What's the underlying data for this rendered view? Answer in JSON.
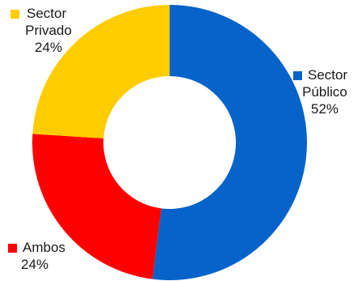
{
  "chart_data": {
    "type": "pie",
    "variant": "donut",
    "slices": [
      {
        "name": "Sector Público",
        "lines": [
          "Sector",
          "Público"
        ],
        "value": 52,
        "label": "52%",
        "color": "#0563C9"
      },
      {
        "name": "Ambos",
        "lines": [
          "Ambos"
        ],
        "value": 24,
        "label": "24%",
        "color": "#FF0000"
      },
      {
        "name": "Sector Privado",
        "lines": [
          "Sector",
          "Privado"
        ],
        "value": 24,
        "label": "24%",
        "color": "#FFCC00"
      }
    ]
  }
}
